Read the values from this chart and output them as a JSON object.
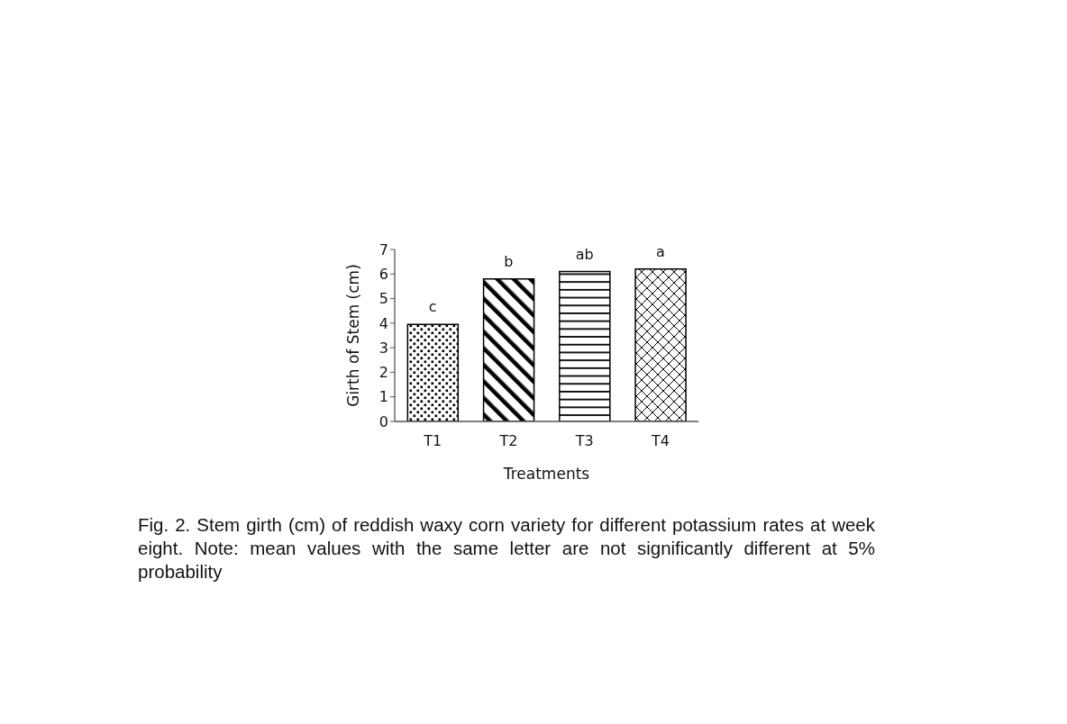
{
  "chart_data": {
    "type": "bar",
    "categories": [
      "T1",
      "T2",
      "T3",
      "T4"
    ],
    "values": [
      3.95,
      5.8,
      6.1,
      6.2
    ],
    "colors": [
      "#000000",
      "#000000",
      "#000000",
      "#000000"
    ],
    "xlabel": "Treatments",
    "ylabel": "Girth of Stem (cm)",
    "ylim": [
      0,
      7
    ],
    "yticks": [
      0,
      1,
      2,
      3,
      4,
      5,
      6,
      7
    ],
    "annotations": [
      {
        "text": "c",
        "x": "T1",
        "y": 3.95
      },
      {
        "text": "b",
        "x": "T2",
        "y": 5.8
      },
      {
        "text": "ab",
        "x": "T3",
        "y": 6.1
      },
      {
        "text": "a",
        "x": "T4",
        "y": 6.2
      },
      "Fig. 2. Stem girth (cm) of reddish waxy corn variety for different potassium rates at week eight. Note: mean values with the same letter are not significantly different at 5% probability"
    ]
  }
}
